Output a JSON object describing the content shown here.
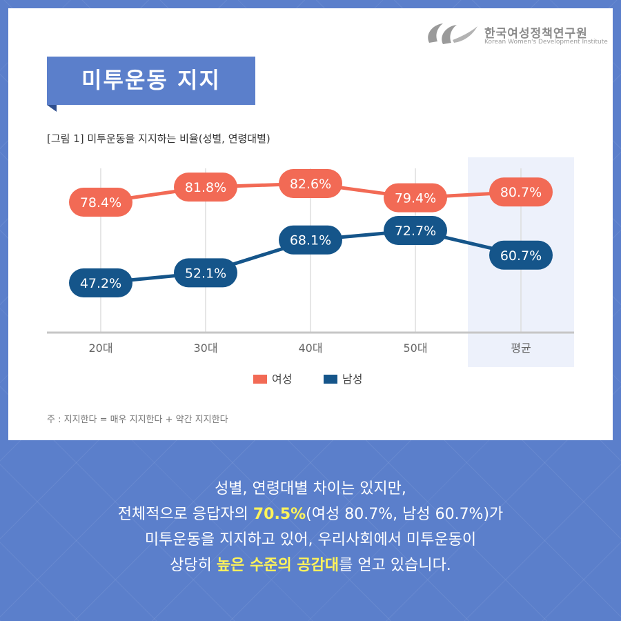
{
  "logo": {
    "name": "한국여성정책연구원",
    "sub": "Korean Women's Development Institute"
  },
  "title": "미투운동 지지",
  "figure_caption": "[그림 1] 미투운동을 지지하는 비율(성별, 연령대별)",
  "footnote": "주 : 지지한다 = 매우 지지한다 + 약간 지지한다",
  "colors": {
    "female": "#f26a55",
    "male": "#15558a",
    "accent_blue": "#5b7fcb",
    "highlight_yellow": "#fff35a",
    "average_band": "#edf1fb"
  },
  "chart_data": {
    "type": "line",
    "categories": [
      "20대",
      "30대",
      "40대",
      "50대",
      "평균"
    ],
    "series": [
      {
        "name": "여성",
        "values": [
          78.4,
          81.8,
          82.6,
          79.4,
          80.7
        ],
        "labels": [
          "78.4%",
          "81.8%",
          "82.6%",
          "79.4%",
          "80.7%"
        ],
        "color": "#f26a55"
      },
      {
        "name": "남성",
        "values": [
          47.2,
          52.1,
          68.1,
          72.7,
          60.7
        ],
        "labels": [
          "47.2%",
          "52.1%",
          "68.1%",
          "72.7%",
          "60.7%"
        ],
        "color": "#15558a"
      }
    ],
    "highlighted_category": "평균",
    "legend_position": "bottom",
    "grid": "vertical"
  },
  "summary": {
    "line1": "성별, 연령대별 차이는 있지만,",
    "line2_pre": "전체적으로 응답자의 ",
    "line2_highlight": "70.5%",
    "line2_post": "(여성 80.7%, 남성 60.7%)가",
    "line3": "미투운동을 지지하고 있어, 우리사회에서 미투운동이",
    "line4_pre": "상당히 ",
    "line4_highlight": "높은 수준의 공감대",
    "line4_post": "를 얻고 있습니다."
  }
}
